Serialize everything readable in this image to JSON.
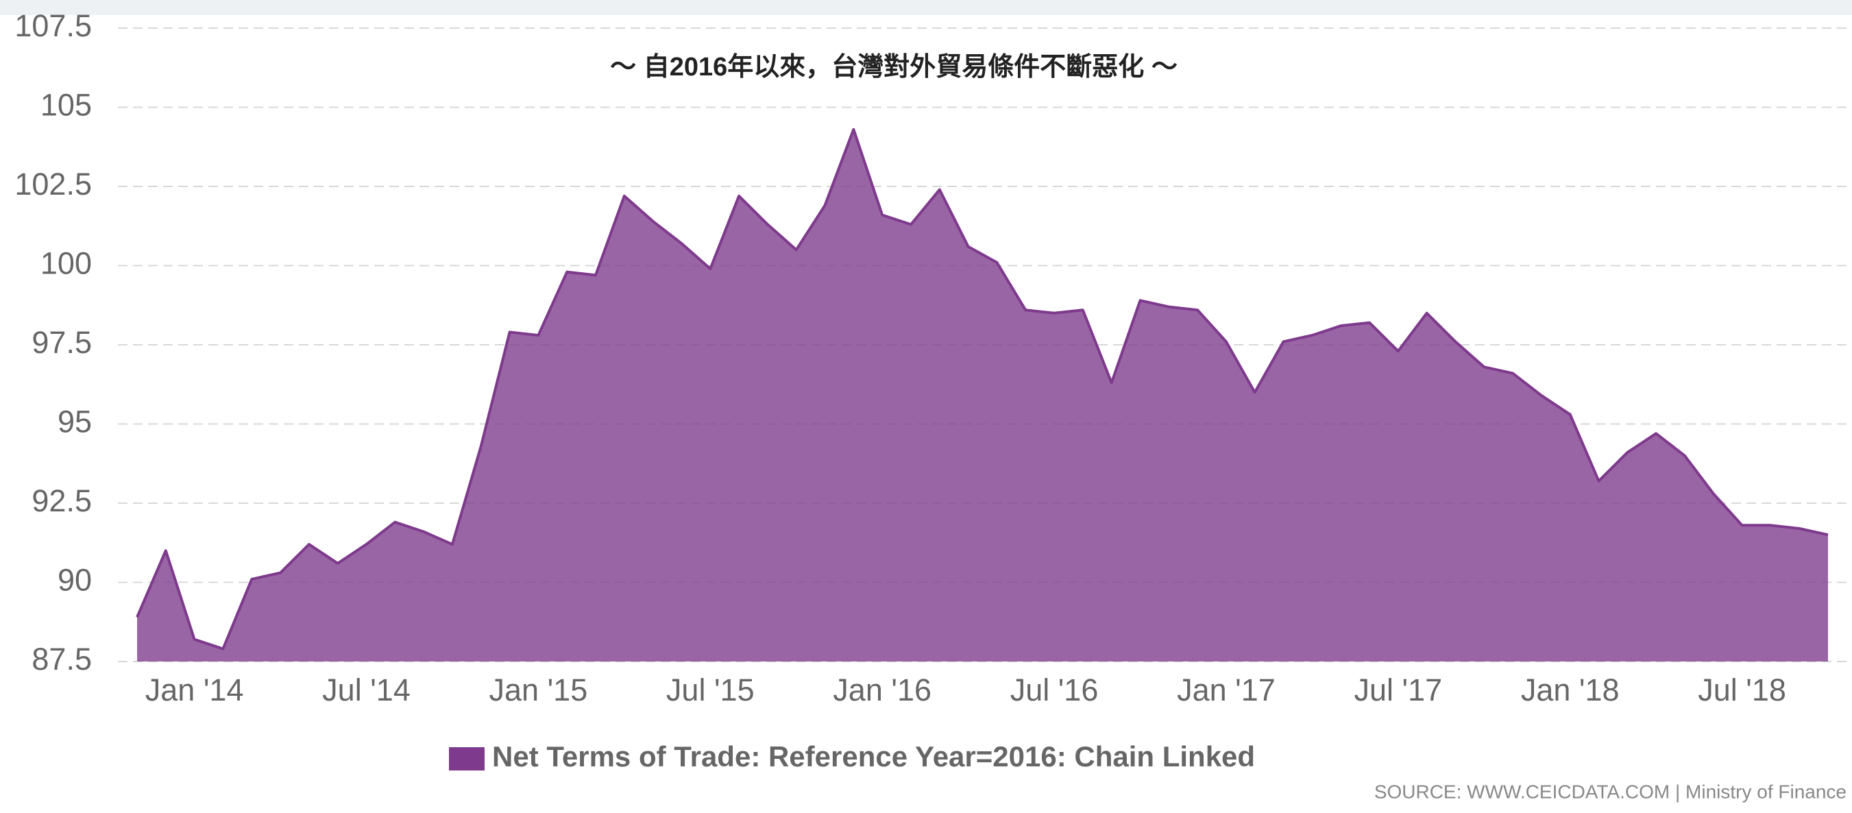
{
  "chart_data": {
    "type": "area",
    "title": "～ 自2016年以來，台灣對外貿易條件不斷惡化 ～",
    "source": "SOURCE: WWW.CEICDATA.COM | Ministry of Finance",
    "categories": [
      null,
      null,
      "Jan '14",
      null,
      null,
      null,
      null,
      null,
      "Jul '14",
      null,
      null,
      null,
      null,
      null,
      "Jan '15",
      null,
      null,
      null,
      null,
      null,
      "Jul '15",
      null,
      null,
      null,
      null,
      null,
      "Jan '16",
      null,
      null,
      null,
      null,
      null,
      "Jul '16",
      null,
      null,
      null,
      null,
      null,
      "Jan '17",
      null,
      null,
      null,
      null,
      null,
      "Jul '17",
      null,
      null,
      null,
      null,
      null,
      "Jan '18",
      null,
      null,
      null,
      null,
      null,
      "Jul '18",
      null,
      null,
      null
    ],
    "series": [
      {
        "name": "Net Terms of Trade: Reference Year=2016: Chain Linked",
        "color": "#7e3a8c",
        "values": [
          88.9,
          91.0,
          88.2,
          87.9,
          90.1,
          90.3,
          91.2,
          90.6,
          91.2,
          91.9,
          91.6,
          91.2,
          94.3,
          97.9,
          97.8,
          99.8,
          99.7,
          102.2,
          101.4,
          100.7,
          99.9,
          102.2,
          101.3,
          100.5,
          101.9,
          104.3,
          101.6,
          101.3,
          102.4,
          100.6,
          100.1,
          98.6,
          98.5,
          98.6,
          96.3,
          98.9,
          98.7,
          98.6,
          97.6,
          96.0,
          97.6,
          97.8,
          98.1,
          98.2,
          97.3,
          98.5,
          97.6,
          96.8,
          96.6,
          95.9,
          95.3,
          93.2,
          94.1,
          94.7,
          94.0,
          92.8,
          91.8,
          91.8,
          91.7,
          91.5
        ]
      }
    ],
    "ylim": [
      87.5,
      107.5
    ],
    "yticks": [
      87.5,
      90,
      92.5,
      95,
      97.5,
      100,
      102.5,
      105,
      107.5
    ],
    "grid": true
  }
}
